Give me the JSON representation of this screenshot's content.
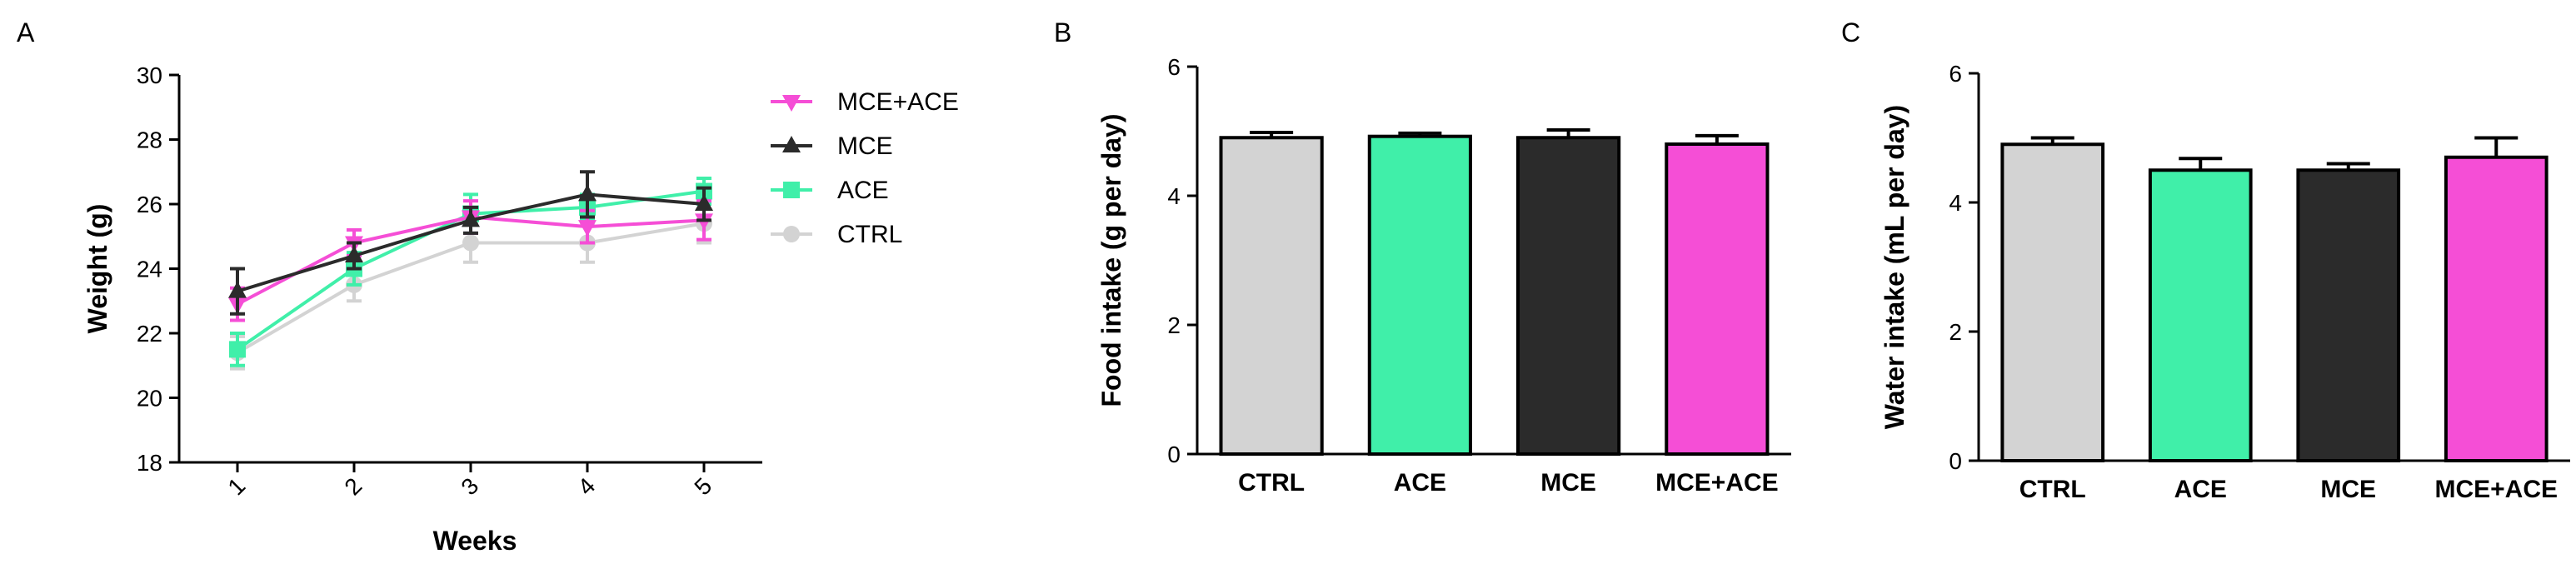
{
  "panels": {
    "a": "A",
    "b": "B",
    "c": "C"
  },
  "colors": {
    "CTRL": "#d3d3d3",
    "ACE": "#40efa9",
    "MCE": "#2b2b2b",
    "MCE+ACE": "#f54ed6"
  },
  "chart_data": [
    {
      "type": "line",
      "panel": "A",
      "xlabel": "Weeks",
      "ylabel": "Weight (g)",
      "x": [
        1,
        2,
        3,
        4,
        5
      ],
      "x_tick_labels": [
        "1",
        "2",
        "3",
        "4",
        "5"
      ],
      "ylim": [
        18,
        30
      ],
      "y_ticks": [
        18,
        20,
        22,
        24,
        26,
        28,
        30
      ],
      "legend_position": "right",
      "legend": [
        "MCE+ACE",
        "MCE",
        "ACE",
        "CTRL"
      ],
      "series": [
        {
          "name": "MCE+ACE",
          "marker": "triangle-down",
          "values": [
            22.9,
            24.8,
            25.6,
            25.3,
            25.5
          ],
          "errors": [
            0.5,
            0.4,
            0.5,
            0.5,
            0.6
          ]
        },
        {
          "name": "MCE",
          "marker": "triangle-up",
          "values": [
            23.3,
            24.4,
            25.5,
            26.3,
            26.0
          ],
          "errors": [
            0.7,
            0.4,
            0.4,
            0.7,
            0.5
          ]
        },
        {
          "name": "ACE",
          "marker": "square",
          "values": [
            21.5,
            24.0,
            25.7,
            25.9,
            26.4
          ],
          "errors": [
            0.5,
            0.5,
            0.6,
            0.4,
            0.4
          ]
        },
        {
          "name": "CTRL",
          "marker": "circle",
          "values": [
            21.4,
            23.5,
            24.8,
            24.8,
            25.4
          ],
          "errors": [
            0.5,
            0.5,
            0.6,
            0.6,
            0.6
          ]
        }
      ]
    },
    {
      "type": "bar",
      "panel": "B",
      "ylabel": "Food intake (g per day)",
      "categories": [
        "CTRL",
        "ACE",
        "MCE",
        "MCE+ACE"
      ],
      "values": [
        4.9,
        4.92,
        4.9,
        4.8
      ],
      "errors": [
        0.08,
        0.05,
        0.12,
        0.13
      ],
      "ylim": [
        0,
        6
      ],
      "y_ticks": [
        0,
        2,
        4,
        6
      ]
    },
    {
      "type": "bar",
      "panel": "C",
      "ylabel": "Water intake (mL per day)",
      "categories": [
        "CTRL",
        "ACE",
        "MCE",
        "MCE+ACE"
      ],
      "values": [
        4.9,
        4.5,
        4.5,
        4.7
      ],
      "errors": [
        0.1,
        0.18,
        0.1,
        0.3
      ],
      "ylim": [
        0,
        6
      ],
      "y_ticks": [
        0,
        2,
        4,
        6
      ]
    }
  ]
}
